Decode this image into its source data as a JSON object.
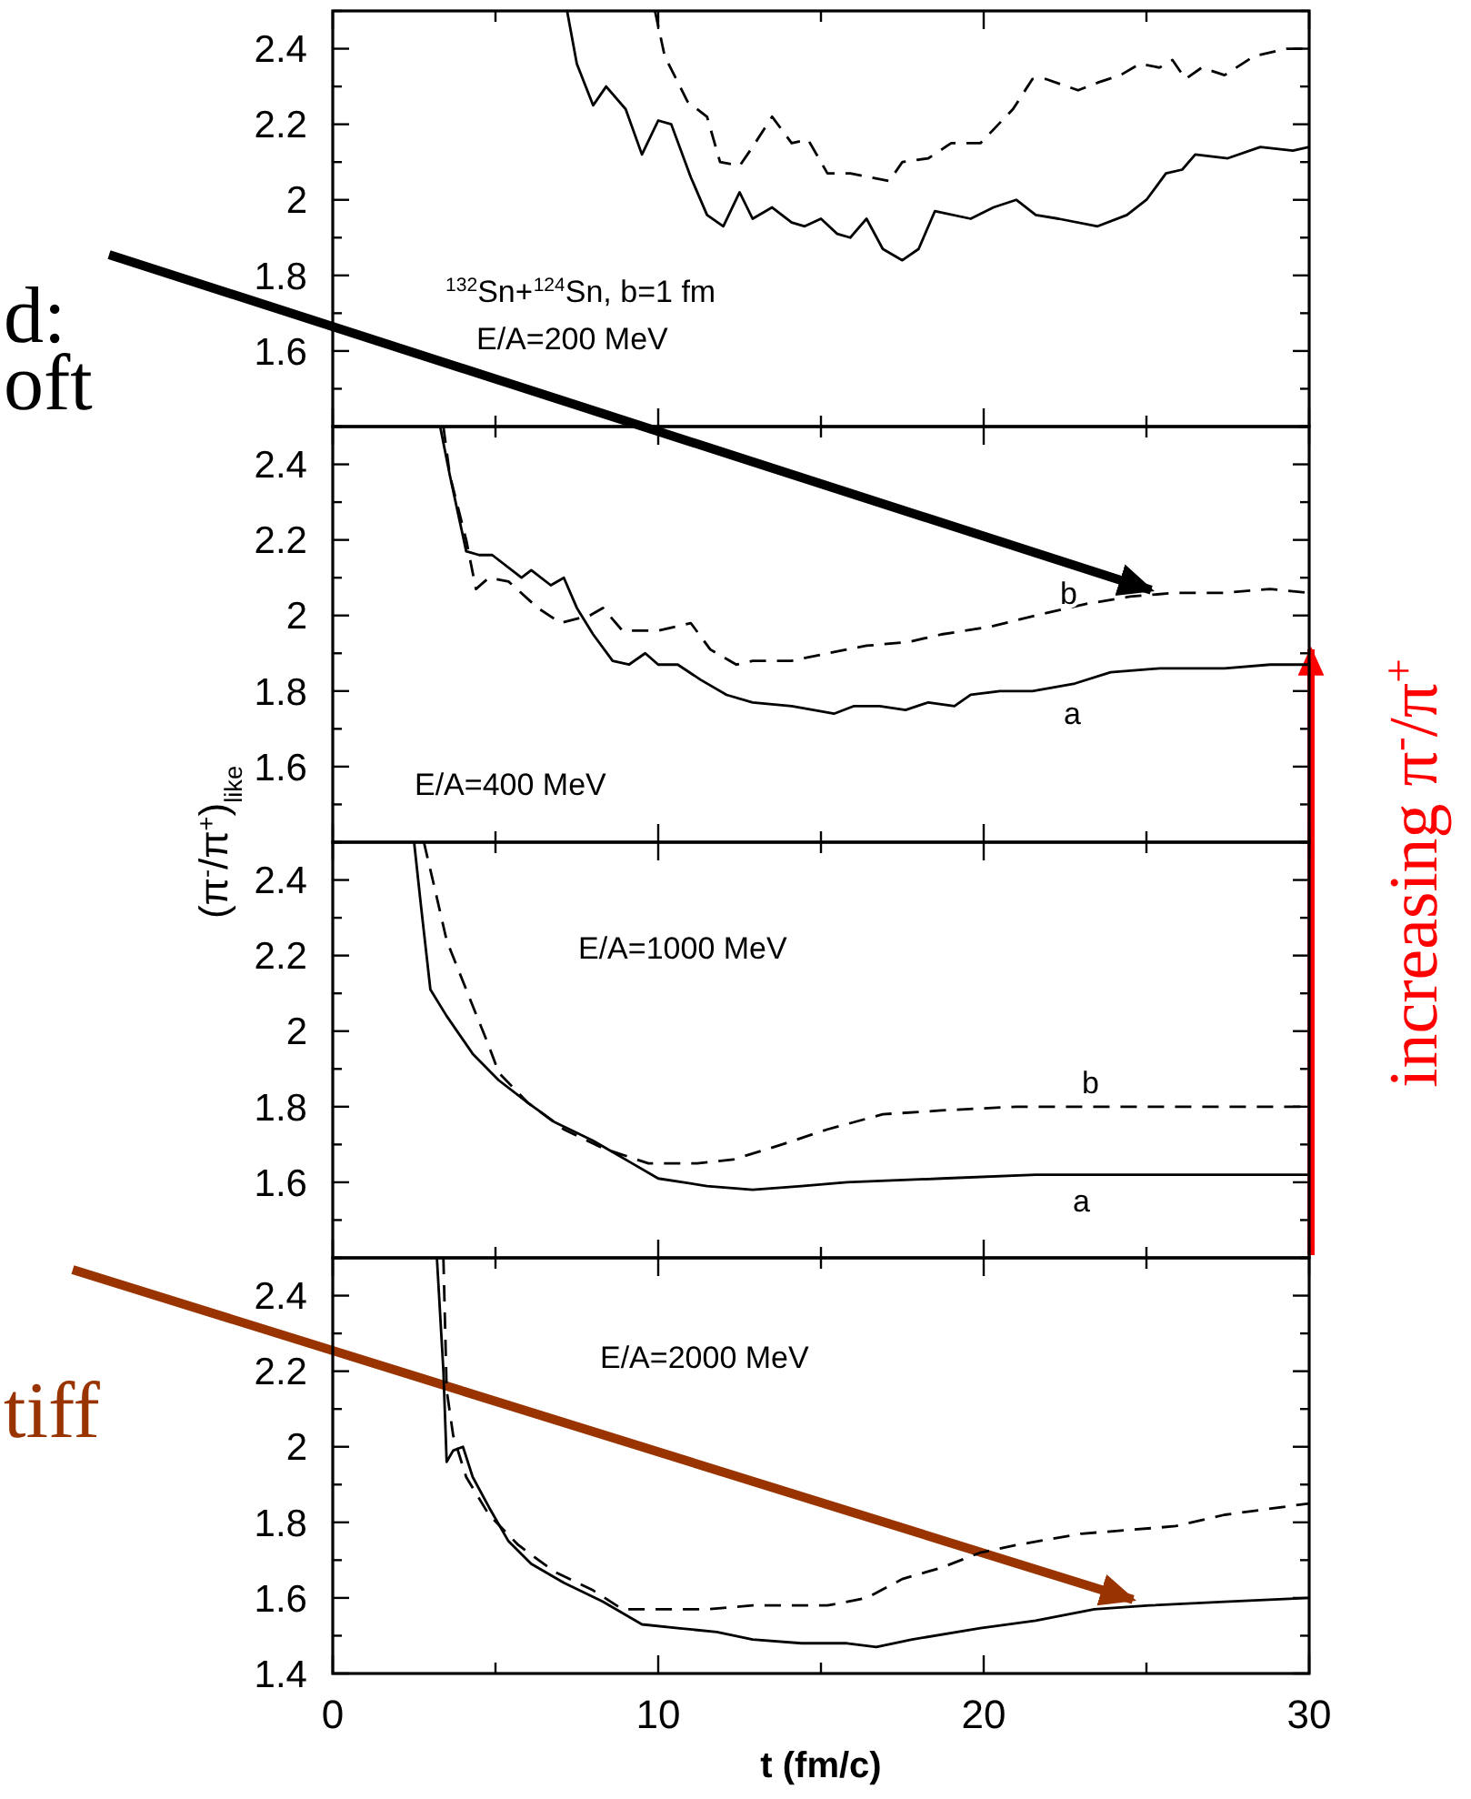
{
  "chart_data": [
    {
      "type": "line",
      "xlim": [
        0,
        30
      ],
      "xticks": [
        0,
        {
          "value": 5,
          "label": null
        },
        10,
        {
          "value": 15,
          "label": null
        },
        20,
        {
          "value": 25,
          "label": null
        },
        30
      ],
      "ylim": [
        1.4,
        2.5
      ],
      "yticks": [
        {
          "value": 1.4,
          "label": null
        },
        {
          "value": 1.5,
          "label": null
        },
        1.6,
        {
          "value": 1.7,
          "label": null
        },
        1.8,
        {
          "value": 1.9,
          "label": null
        },
        2,
        {
          "value": 2.1,
          "label": null
        },
        2.2,
        {
          "value": 2.3,
          "label": null
        },
        2.4,
        {
          "value": 2.5,
          "label": null
        }
      ],
      "tick_labels": "y",
      "grid": false,
      "annotations": [
        "$^{132}$Sn+$^{124}$Sn, b=1 fm",
        "E/A=200 MeV",
        "d:",
        "oft"
      ],
      "series": [
        {
          "color": "#000000",
          "line_style": "solid",
          "x": [
            7.2,
            7.5,
            8.0,
            8.4,
            9.0,
            9.5,
            10.0,
            10.4,
            11.0,
            11.5,
            12.0,
            12.5,
            12.9,
            13.5,
            14.1,
            14.5,
            15.0,
            15.5,
            15.9,
            16.4,
            16.9,
            17.5,
            18.0,
            18.5,
            19.6,
            20.3,
            21.0,
            21.6,
            22.3,
            23.5,
            24.4,
            25.0,
            25.6,
            26.1,
            26.5,
            27.5,
            28.5,
            29.5,
            30
          ],
          "values": [
            2.5,
            2.36,
            2.25,
            2.3,
            2.24,
            2.12,
            2.21,
            2.2,
            2.06,
            1.96,
            1.93,
            2.02,
            1.95,
            1.98,
            1.94,
            1.93,
            1.95,
            1.91,
            1.9,
            1.95,
            1.87,
            1.84,
            1.87,
            1.97,
            1.95,
            1.98,
            2.0,
            1.96,
            1.95,
            1.93,
            1.96,
            2.0,
            2.07,
            2.08,
            2.12,
            2.11,
            2.14,
            2.13,
            2.14
          ]
        },
        {
          "color": "#000000",
          "line_style": "dashed",
          "x": [
            9.9,
            10.2,
            10.9,
            11.5,
            11.9,
            12.5,
            12.9,
            13.5,
            14.1,
            14.6,
            15.2,
            15.9,
            17.1,
            17.5,
            18.3,
            19.0,
            19.9,
            20.9,
            21.5,
            21.9,
            22.9,
            23.5,
            24.2,
            24.8,
            25.4,
            25.8,
            26.2,
            26.7,
            27.4,
            28.3,
            29.3,
            30
          ],
          "values": [
            2.5,
            2.38,
            2.26,
            2.22,
            2.1,
            2.09,
            2.14,
            2.22,
            2.15,
            2.16,
            2.07,
            2.07,
            2.05,
            2.1,
            2.11,
            2.15,
            2.15,
            2.24,
            2.32,
            2.32,
            2.29,
            2.31,
            2.33,
            2.36,
            2.35,
            2.37,
            2.32,
            2.35,
            2.33,
            2.38,
            2.4,
            2.4
          ]
        }
      ]
    },
    {
      "type": "line",
      "xlim": [
        0,
        30
      ],
      "xticks": [
        0,
        {
          "value": 5,
          "label": null
        },
        10,
        {
          "value": 15,
          "label": null
        },
        20,
        {
          "value": 25,
          "label": null
        },
        30
      ],
      "ylim": [
        1.4,
        2.5
      ],
      "yticks": [
        {
          "value": 1.4,
          "label": null
        },
        {
          "value": 1.5,
          "label": null
        },
        1.6,
        {
          "value": 1.7,
          "label": null
        },
        1.8,
        {
          "value": 1.9,
          "label": null
        },
        2,
        {
          "value": 2.1,
          "label": null
        },
        2.2,
        {
          "value": 2.3,
          "label": null
        },
        2.4,
        {
          "value": 2.5,
          "label": null
        }
      ],
      "tick_labels": "y",
      "grid": false,
      "ylabel": "(π$^{-}$/π$^{+}$)$_{like}$",
      "annotations": [
        "E/A=400 MeV",
        "b",
        "a",
        "increasing π$^{-}$/π$^{+}$"
      ],
      "series": [
        {
          "color": "#000000",
          "line_style": "solid",
          "x": [
            3.3,
            3.6,
            3.9,
            4.1,
            4.5,
            4.9,
            5.8,
            6.1,
            6.7,
            7.1,
            7.5,
            8.0,
            8.6,
            9.1,
            9.6,
            10.0,
            10.6,
            11.3,
            12.1,
            12.9,
            14.1,
            15.4,
            16.0,
            16.8,
            17.6,
            18.3,
            19.1,
            19.6,
            20.5,
            21.5,
            22.8,
            23.9,
            25.4,
            27.4,
            28.8,
            30
          ],
          "values": [
            2.5,
            2.37,
            2.25,
            2.17,
            2.16,
            2.16,
            2.1,
            2.12,
            2.08,
            2.1,
            2.02,
            1.95,
            1.88,
            1.87,
            1.9,
            1.87,
            1.87,
            1.83,
            1.79,
            1.77,
            1.76,
            1.74,
            1.76,
            1.76,
            1.75,
            1.77,
            1.76,
            1.79,
            1.8,
            1.8,
            1.82,
            1.85,
            1.86,
            1.86,
            1.87,
            1.87
          ]
        },
        {
          "color": "#000000",
          "line_style": "dashed",
          "x": [
            3.4,
            3.6,
            4.1,
            4.4,
            4.8,
            5.4,
            6.3,
            7.0,
            7.9,
            8.3,
            8.9,
            10.0,
            11.0,
            11.6,
            12.4,
            12.9,
            14.1,
            15.2,
            16.4,
            17.7,
            18.7,
            20.2,
            21.6,
            23.1,
            24.5,
            25.9,
            27.4,
            28.8,
            30
          ],
          "values": [
            2.5,
            2.37,
            2.2,
            2.07,
            2.1,
            2.09,
            2.02,
            1.98,
            2.0,
            2.02,
            1.96,
            1.96,
            1.98,
            1.91,
            1.87,
            1.88,
            1.88,
            1.9,
            1.92,
            1.93,
            1.95,
            1.97,
            2.0,
            2.03,
            2.05,
            2.06,
            2.06,
            2.07,
            2.06
          ]
        }
      ]
    },
    {
      "type": "line",
      "xlim": [
        0,
        30
      ],
      "xticks": [
        0,
        {
          "value": 5,
          "label": null
        },
        10,
        {
          "value": 15,
          "label": null
        },
        20,
        {
          "value": 25,
          "label": null
        },
        30
      ],
      "ylim": [
        1.4,
        2.5
      ],
      "yticks": [
        {
          "value": 1.4,
          "label": null
        },
        {
          "value": 1.5,
          "label": null
        },
        1.6,
        {
          "value": 1.7,
          "label": null
        },
        1.8,
        {
          "value": 1.9,
          "label": null
        },
        2,
        {
          "value": 2.1,
          "label": null
        },
        2.2,
        {
          "value": 2.3,
          "label": null
        },
        2.4,
        {
          "value": 2.5,
          "label": null
        }
      ],
      "tick_labels": "y",
      "grid": false,
      "annotations": [
        "E/A=1000 MeV",
        "b",
        "a"
      ],
      "series": [
        {
          "color": "#000000",
          "line_style": "solid",
          "x": [
            2.5,
            2.7,
            3.0,
            3.5,
            4.3,
            5.1,
            6.0,
            6.8,
            8.0,
            9.2,
            10.0,
            11.5,
            12.9,
            14.4,
            15.8,
            18.7,
            21.6,
            24.5,
            27.4,
            30
          ],
          "values": [
            2.5,
            2.34,
            2.11,
            2.04,
            1.94,
            1.87,
            1.81,
            1.76,
            1.71,
            1.65,
            1.61,
            1.59,
            1.58,
            1.59,
            1.6,
            1.61,
            1.62,
            1.62,
            1.62,
            1.62
          ]
        },
        {
          "color": "#000000",
          "line_style": "dashed",
          "x": [
            2.8,
            3.1,
            3.5,
            4.1,
            4.8,
            5.1,
            6.0,
            7.1,
            8.3,
            9.7,
            11.2,
            12.3,
            13.8,
            15.2,
            16.9,
            18.7,
            21.0,
            23.0,
            25.9,
            30
          ],
          "values": [
            2.5,
            2.39,
            2.24,
            2.11,
            1.96,
            1.89,
            1.81,
            1.74,
            1.69,
            1.65,
            1.65,
            1.66,
            1.7,
            1.74,
            1.78,
            1.79,
            1.8,
            1.8,
            1.8,
            1.8
          ]
        }
      ]
    },
    {
      "type": "line",
      "xlim": [
        0,
        30
      ],
      "xticks": [
        0,
        {
          "value": 5,
          "label": null
        },
        10,
        {
          "value": 15,
          "label": null
        },
        20,
        {
          "value": 25,
          "label": null
        },
        30
      ],
      "ylim": [
        1.4,
        2.5
      ],
      "yticks": [
        1.4,
        {
          "value": 1.5,
          "label": null
        },
        1.6,
        {
          "value": 1.7,
          "label": null
        },
        1.8,
        {
          "value": 1.9,
          "label": null
        },
        2,
        {
          "value": 2.1,
          "label": null
        },
        2.2,
        {
          "value": 2.3,
          "label": null
        },
        2.4,
        {
          "value": 2.5,
          "label": null
        }
      ],
      "grid": false,
      "xlabel": "t (fm/c)",
      "annotations": [
        "E/A=2000 MeV",
        "tiff"
      ],
      "series": [
        {
          "color": "#000000",
          "line_style": "solid",
          "x": [
            3.2,
            3.4,
            3.5,
            3.7,
            4.0,
            4.3,
            4.8,
            5.4,
            6.1,
            7.1,
            8.3,
            9.5,
            10.6,
            11.8,
            12.9,
            14.4,
            15.8,
            16.7,
            17.8,
            19.9,
            21.6,
            23.4,
            25.1,
            27.4,
            30
          ],
          "values": [
            2.5,
            2.2,
            1.96,
            1.99,
            2.0,
            1.92,
            1.84,
            1.75,
            1.69,
            1.64,
            1.59,
            1.53,
            1.52,
            1.51,
            1.49,
            1.48,
            1.48,
            1.47,
            1.49,
            1.52,
            1.54,
            1.57,
            1.58,
            1.59,
            1.6
          ]
        },
        {
          "color": "#000000",
          "line_style": "dashed",
          "x": [
            3.4,
            3.5,
            3.7,
            4.1,
            4.8,
            5.7,
            6.8,
            8.0,
            8.9,
            10.0,
            11.5,
            12.9,
            15.2,
            16.4,
            17.5,
            18.7,
            19.9,
            21.0,
            23.0,
            24.5,
            25.9,
            27.4,
            30
          ],
          "values": [
            2.5,
            2.15,
            2.03,
            1.92,
            1.82,
            1.74,
            1.67,
            1.62,
            1.57,
            1.57,
            1.57,
            1.58,
            1.58,
            1.6,
            1.65,
            1.68,
            1.72,
            1.74,
            1.77,
            1.78,
            1.79,
            1.82,
            1.85
          ]
        }
      ]
    }
  ]
}
